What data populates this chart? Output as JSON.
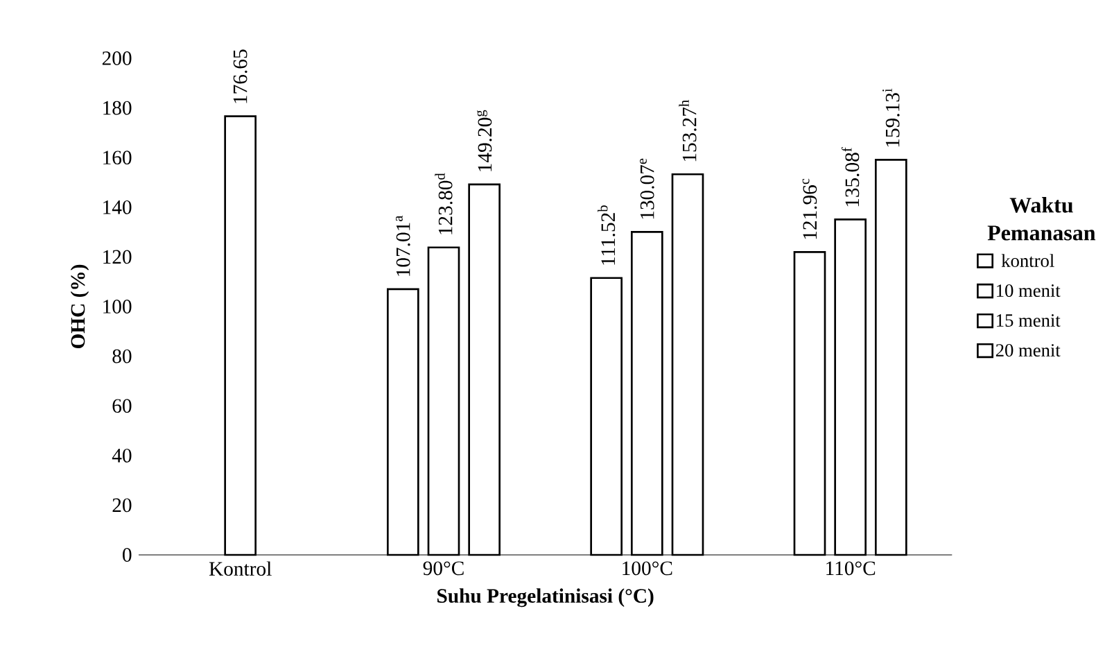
{
  "chart_data": {
    "type": "bar",
    "xlabel": "Suhu Pregelatinisasi (°C)",
    "ylabel": "OHC (%)",
    "legend_title": "Waktu Pemanasan",
    "categories": [
      "Kontrol",
      "90°C",
      "100°C",
      "110°C"
    ],
    "series": [
      {
        "name": "kontrol",
        "color": "#ffffff",
        "values": [
          176.65,
          null,
          null,
          null
        ],
        "value_labels": [
          "176.65",
          null,
          null,
          null
        ]
      },
      {
        "name": "10 menit",
        "color": "#ffffff",
        "values": [
          null,
          107.01,
          111.52,
          121.96
        ],
        "value_labels": [
          null,
          "107.01$^{a}$",
          "111.52$^{b}$",
          "121.96$^{c}$"
        ]
      },
      {
        "name": "15 menit",
        "color": "#ffffff",
        "values": [
          null,
          123.8,
          130.07,
          135.08
        ],
        "value_labels": [
          null,
          "123.80$^{d}$",
          "130.07$^{e}$",
          "135.08$^{f}$"
        ]
      },
      {
        "name": "20 menit",
        "color": "#ffffff",
        "values": [
          null,
          149.2,
          153.27,
          159.13
        ],
        "value_labels": [
          null,
          "149.20$^{g}$",
          "153.27$^{h}$",
          "159.13$^{i}$"
        ]
      }
    ],
    "ylim": [
      0,
      200
    ],
    "yticks": [
      0,
      20,
      40,
      60,
      80,
      100,
      120,
      140,
      160,
      180,
      200
    ],
    "grid": false,
    "legend": "right"
  }
}
